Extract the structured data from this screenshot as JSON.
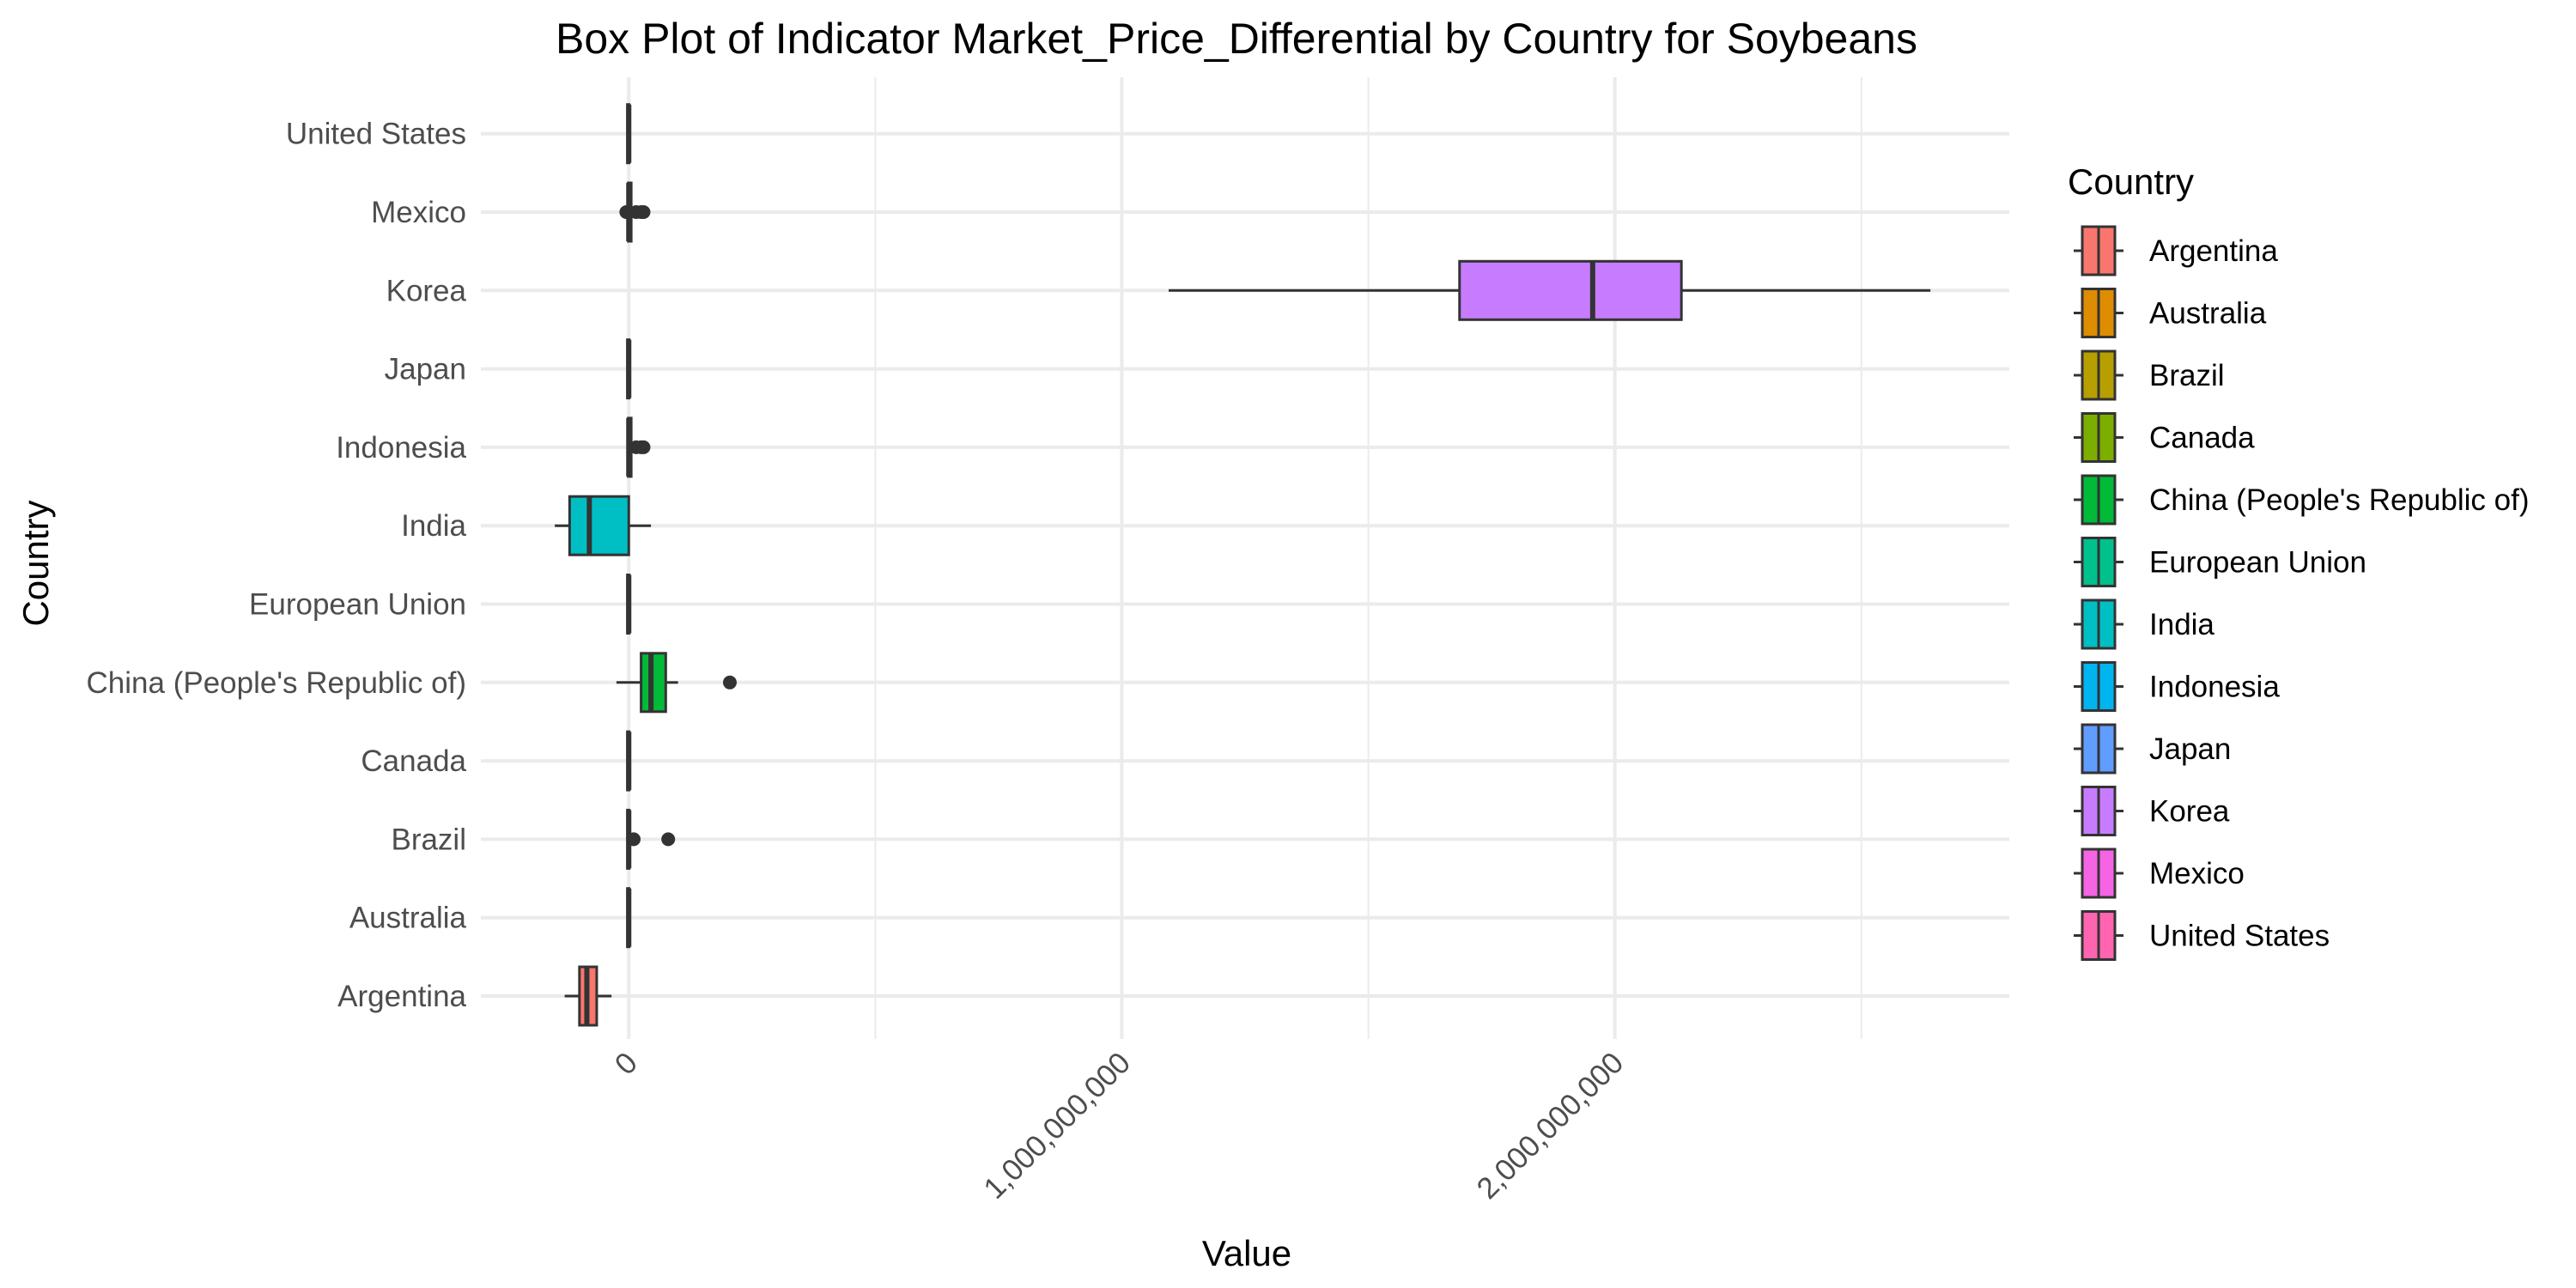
{
  "chart_data": {
    "type": "boxplot",
    "orientation": "horizontal",
    "title": "Box Plot of Indicator Market_Price_Differential by Country for Soybeans",
    "xlabel": "Value",
    "ylabel": "Country",
    "xlim": [
      -300000000,
      2800000000
    ],
    "x_ticks": [
      {
        "value": 0,
        "label": "0"
      },
      {
        "value": 1000000000,
        "label": "1,000,000,000"
      },
      {
        "value": 2000000000,
        "label": "2,000,000,000"
      }
    ],
    "x_minor_ticks": [
      500000000,
      1500000000,
      2500000000
    ],
    "grid": true,
    "legend": {
      "title": "Country",
      "position": "right"
    },
    "categories": [
      "Argentina",
      "Australia",
      "Brazil",
      "Canada",
      "China (People's Republic of)",
      "European Union",
      "India",
      "Indonesia",
      "Japan",
      "Korea",
      "Mexico",
      "United States"
    ],
    "series": [
      {
        "name": "Argentina",
        "color": "#F8766D",
        "min": -130000000,
        "q1": -100000000,
        "median": -85000000,
        "q3": -65000000,
        "max": -35000000,
        "outliers": []
      },
      {
        "name": "Australia",
        "color": "#DE8C00",
        "min": -2000000,
        "q1": -1000000,
        "median": 0,
        "q3": 1000000,
        "max": 2000000,
        "outliers": []
      },
      {
        "name": "Brazil",
        "color": "#B79F00",
        "min": -2000000,
        "q1": -1000000,
        "median": 0,
        "q3": 2000000,
        "max": 5000000,
        "outliers": [
          10000000,
          80000000
        ]
      },
      {
        "name": "Canada",
        "color": "#7CAE00",
        "min": -2000000,
        "q1": -1000000,
        "median": 0,
        "q3": 1000000,
        "max": 2000000,
        "outliers": []
      },
      {
        "name": "China (People's Republic of)",
        "color": "#00BA38",
        "min": -25000000,
        "q1": 25000000,
        "median": 45000000,
        "q3": 75000000,
        "max": 100000000,
        "outliers": [
          205000000
        ]
      },
      {
        "name": "European Union",
        "color": "#00C08B",
        "min": -2000000,
        "q1": -1000000,
        "median": 0,
        "q3": 1000000,
        "max": 2000000,
        "outliers": []
      },
      {
        "name": "India",
        "color": "#00BFC4",
        "min": -150000000,
        "q1": -120000000,
        "median": -80000000,
        "q3": 0,
        "max": 45000000,
        "outliers": []
      },
      {
        "name": "Indonesia",
        "color": "#00B4F0",
        "min": -2000000,
        "q1": -1000000,
        "median": 0,
        "q3": 5000000,
        "max": 10000000,
        "outliers": [
          15000000,
          25000000,
          30000000
        ]
      },
      {
        "name": "Japan",
        "color": "#619CFF",
        "min": -2000000,
        "q1": -1000000,
        "median": 0,
        "q3": 1000000,
        "max": 2000000,
        "outliers": []
      },
      {
        "name": "Korea",
        "color": "#C77CFF",
        "min": 1095000000,
        "q1": 1685000000,
        "median": 1955000000,
        "q3": 2135000000,
        "max": 2640000000,
        "outliers": []
      },
      {
        "name": "Mexico",
        "color": "#F564E3",
        "min": -2000000,
        "q1": -1000000,
        "median": 0,
        "q3": 5000000,
        "max": 10000000,
        "outliers": [
          -5000000,
          15000000,
          25000000,
          30000000
        ]
      },
      {
        "name": "United States",
        "color": "#FF64B0",
        "min": -2000000,
        "q1": -1000000,
        "median": 0,
        "q3": 1000000,
        "max": 2000000,
        "outliers": []
      }
    ]
  }
}
